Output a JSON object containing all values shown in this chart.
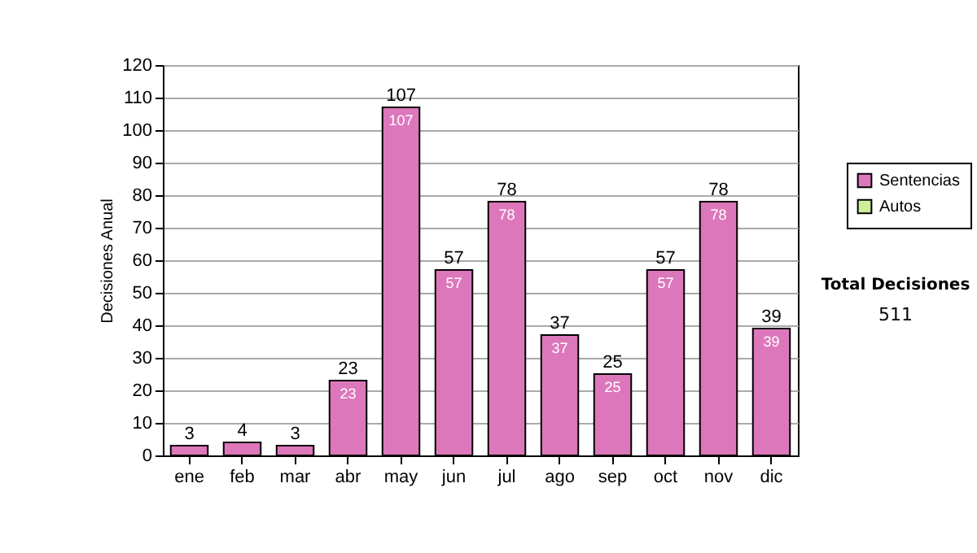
{
  "chart_data": {
    "type": "bar",
    "stacked": true,
    "ylabel": "Decisiones Anual",
    "categories": [
      "ene",
      "feb",
      "mar",
      "abr",
      "may",
      "jun",
      "jul",
      "ago",
      "sep",
      "oct",
      "nov",
      "dic"
    ],
    "series": [
      {
        "name": "Sentencias",
        "color": "#dd77bb",
        "values": [
          3,
          4,
          3,
          23,
          107,
          57,
          78,
          37,
          25,
          57,
          78,
          39
        ],
        "value_labels": [
          null,
          null,
          null,
          "23",
          "107",
          "57",
          "78",
          "37",
          "25",
          "57",
          "78",
          "39"
        ]
      },
      {
        "name": "Autos",
        "color": "#ccee99",
        "values": [
          null,
          null,
          null,
          null,
          null,
          null,
          null,
          null,
          null,
          null,
          null,
          null
        ]
      }
    ],
    "totals": [
      "3",
      "4",
      "3",
      "23",
      "107",
      "57",
      "78",
      "37",
      "25",
      "57",
      "78",
      "39"
    ],
    "ylim": [
      0,
      120
    ],
    "yticks": [
      0,
      10,
      20,
      30,
      40,
      50,
      60,
      70,
      80,
      90,
      100,
      110,
      120
    ],
    "grid": "y",
    "legend": "right",
    "annotations": [
      "Total Decisiones",
      "511"
    ]
  }
}
